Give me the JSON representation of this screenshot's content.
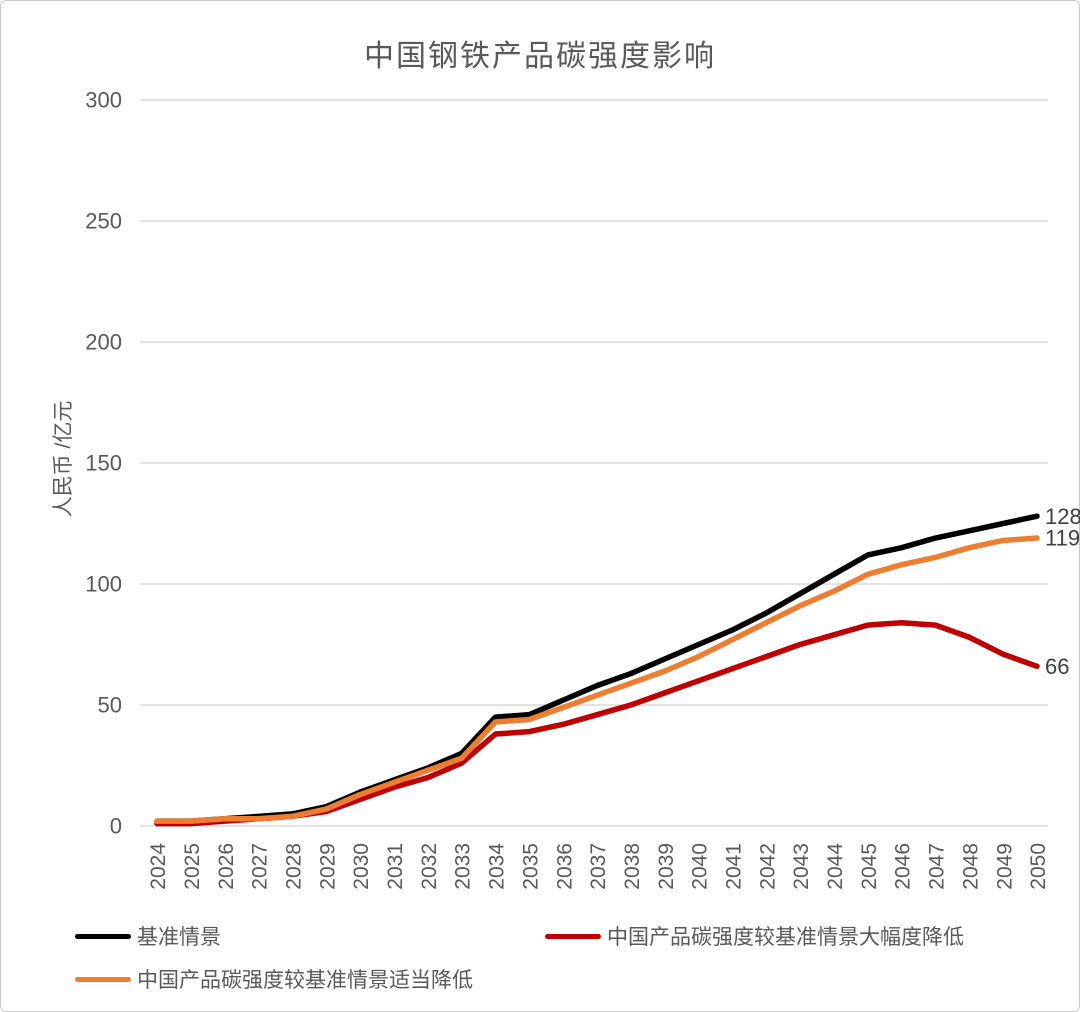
{
  "title": "中国钢铁产品碳强度影响",
  "chart_data": {
    "type": "line",
    "title": "中国钢铁产品碳强度影响",
    "xlabel": "",
    "ylabel": "人民币 /亿元",
    "ylim": [
      0,
      300
    ],
    "yticks": [
      0,
      50,
      100,
      150,
      200,
      250,
      300
    ],
    "grid": "horizontal",
    "gridline_color": "#d9d9d9",
    "axis_text_color": "#595959",
    "data_label_color": "#404040",
    "legend_position": "bottom",
    "categories": [
      2024,
      2025,
      2026,
      2027,
      2028,
      2029,
      2030,
      2031,
      2032,
      2033,
      2034,
      2035,
      2036,
      2037,
      2038,
      2039,
      2040,
      2041,
      2042,
      2043,
      2044,
      2045,
      2046,
      2047,
      2048,
      2049,
      2050
    ],
    "series": [
      {
        "name": "基准情景",
        "color": "#000000",
        "end_label": "128",
        "values": [
          2,
          2,
          3,
          4,
          5,
          8,
          14,
          19,
          24,
          30,
          45,
          46,
          52,
          58,
          63,
          69,
          75,
          81,
          88,
          96,
          104,
          112,
          115,
          119,
          122,
          125,
          128
        ]
      },
      {
        "name": "中国产品碳强度较基准情景大幅度降低",
        "color": "#c00000",
        "end_label": "66",
        "values": [
          1,
          1,
          2,
          3,
          4,
          6,
          11,
          16,
          20,
          26,
          38,
          39,
          42,
          46,
          50,
          55,
          60,
          65,
          70,
          75,
          79,
          83,
          84,
          83,
          78,
          71,
          66
        ]
      },
      {
        "name": "中国产品碳强度较基准情景适当降低",
        "color": "#ed7d31",
        "end_label": "119",
        "values": [
          2,
          2,
          3,
          3,
          4,
          7,
          13,
          18,
          23,
          28,
          43,
          44,
          49,
          54,
          59,
          64,
          70,
          77,
          84,
          91,
          97,
          104,
          108,
          111,
          115,
          118,
          119
        ]
      }
    ]
  }
}
